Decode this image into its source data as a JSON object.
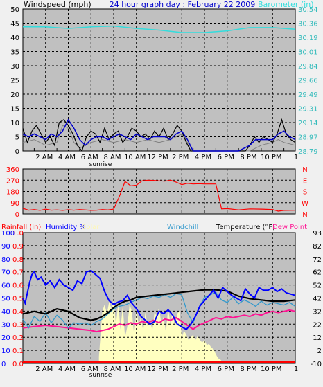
{
  "header": {
    "windspeed_label": "Windspeed (mph)",
    "title": "24 hour graph day : February 22 2009",
    "barometer_label": "Barometer (in)"
  },
  "time_axis": {
    "labels": [
      "2 AM",
      "4 AM",
      "6 AM",
      "8 AM",
      "10 AM",
      "12 PM",
      "2 PM",
      "4 PM",
      "6 PM",
      "8 PM",
      "10 PM"
    ],
    "label_hours": [
      2,
      4,
      6,
      8,
      10,
      12,
      14,
      16,
      18,
      20,
      22
    ],
    "end_label": "1",
    "sunrise_label": "sunrise",
    "sunrise_hour": 6.95
  },
  "legend": {
    "rainfall": "Rainfall (in)",
    "humidity": "Humidity %",
    "solar": "Solar",
    "windchill": "Windchill",
    "temperature": "Temperature (°F)",
    "dew_point": "Dew Point"
  },
  "colors": {
    "background": "#c0c0c0",
    "grid": "#000000",
    "wind_speed": "#000000",
    "wind_gust": "#0000cc",
    "wind_avg": "#808080",
    "barometer": "#33dddd",
    "direction": "#ff0000",
    "rainfall": "#ff0000",
    "humidity": "#0000ff",
    "solar": "#ffffc0",
    "windchill": "#3399cc",
    "temperature": "#000000",
    "dew_point": "#ff1493",
    "axis_humidity": "#0000ff",
    "axis_rain": "#ff0000",
    "axis_wind_dir": "#ff0000",
    "axis_baro": "#33bbbb"
  },
  "chart_data": [
    {
      "type": "line",
      "name": "wind-barometer",
      "x_range": [
        0,
        24
      ],
      "y_left": {
        "label": "Windspeed (mph)",
        "ticks": [
          0,
          5,
          10,
          15,
          20,
          25,
          30,
          35,
          40,
          45,
          50
        ],
        "range": [
          0,
          50
        ]
      },
      "y_right": {
        "label": "Barometer (in)",
        "ticks": [
          "28.79",
          "28.97",
          "29.14",
          "29.31",
          "29.49",
          "29.66",
          "29.84",
          "30.01",
          "30.19",
          "30.36",
          "30.54"
        ],
        "range": [
          28.79,
          30.54
        ]
      },
      "series": [
        {
          "key": "wind_speed",
          "x": [
            0,
            0.4,
            0.8,
            1.2,
            1.6,
            2.0,
            2.4,
            2.8,
            3.2,
            3.6,
            4.0,
            4.4,
            4.8,
            5.2,
            5.6,
            6.0,
            6.4,
            6.8,
            7.2,
            7.6,
            8.0,
            8.4,
            8.8,
            9.2,
            9.6,
            10.0,
            10.4,
            10.8,
            11.2,
            11.6,
            12.0,
            12.4,
            12.8,
            13.2,
            13.6,
            14.0,
            14.4,
            14.8,
            15.2,
            15.6,
            16.0,
            16.4,
            16.8,
            17.2,
            17.6,
            18.0,
            18.4,
            18.8,
            19.2,
            19.6,
            20.0,
            20.4,
            20.8,
            21.2,
            21.6,
            22.0,
            22.4,
            22.8,
            23.2,
            23.6,
            24.0
          ],
          "y": [
            8,
            3,
            7,
            9,
            6,
            3,
            5,
            2,
            10,
            11,
            9,
            6,
            2,
            0,
            5,
            7,
            6,
            3,
            8,
            4,
            6,
            7,
            3,
            5,
            8,
            7,
            5,
            6,
            4,
            7,
            5,
            8,
            4,
            6,
            9,
            7,
            3,
            0,
            0,
            0,
            0,
            0,
            0,
            0,
            0,
            0,
            0,
            0,
            0,
            0,
            2,
            5,
            3,
            5,
            4,
            3,
            6,
            11,
            6,
            4,
            3
          ]
        },
        {
          "key": "wind_gust",
          "x": [
            0,
            0.5,
            1.0,
            1.5,
            2.0,
            2.5,
            3.0,
            3.5,
            4.0,
            4.5,
            5.0,
            5.5,
            6.0,
            6.5,
            7.0,
            7.5,
            8.0,
            8.5,
            9.0,
            9.5,
            10.0,
            10.5,
            11.0,
            11.5,
            12.0,
            12.5,
            13.0,
            13.5,
            14.0,
            14.5,
            15.0,
            15.5,
            16.0,
            17.0,
            18.0,
            19.0,
            20.0,
            20.5,
            21.0,
            21.5,
            22.0,
            22.5,
            23.0,
            23.5,
            24.0
          ],
          "y": [
            6,
            5,
            6,
            5,
            4,
            6,
            5,
            7,
            11,
            8,
            4,
            2,
            4,
            5,
            5,
            4,
            5,
            6,
            5,
            4,
            6,
            5,
            4,
            5,
            5,
            5,
            4,
            6,
            7,
            4,
            0,
            0,
            0,
            0,
            0,
            0,
            2,
            4,
            4,
            4,
            4,
            6,
            7,
            5,
            4
          ]
        },
        {
          "key": "wind_avg",
          "x": [
            0,
            1,
            2,
            3,
            3.5,
            4,
            4.5,
            5,
            6,
            7,
            8,
            9,
            10,
            11,
            12,
            13,
            14,
            14.5,
            15,
            16,
            17,
            18,
            19,
            20,
            21,
            22,
            22.5,
            23,
            24
          ],
          "y": [
            3,
            4,
            2,
            3,
            9,
            8,
            3,
            1,
            3,
            4,
            3,
            4,
            3,
            4,
            3,
            4,
            6,
            3,
            0,
            0,
            0,
            0,
            0,
            0,
            2,
            3,
            4,
            3,
            2
          ]
        },
        {
          "key": "barometer",
          "x": [
            0,
            2,
            4,
            6,
            8,
            10,
            12,
            14,
            16,
            18,
            20,
            22,
            24
          ],
          "y": [
            30.32,
            30.32,
            30.3,
            30.32,
            30.33,
            30.3,
            30.28,
            30.25,
            30.25,
            30.27,
            30.31,
            30.31,
            30.29
          ]
        }
      ]
    },
    {
      "type": "line",
      "name": "wind-direction",
      "x_range": [
        0,
        24
      ],
      "y_left": {
        "ticks": [
          0,
          90,
          180,
          270,
          360
        ],
        "range": [
          0,
          360
        ]
      },
      "y_right": {
        "ticks": [
          "N",
          "E",
          "S",
          "W",
          "N"
        ]
      },
      "series": [
        {
          "key": "direction",
          "x": [
            0,
            0.5,
            1,
            1.5,
            2,
            2.5,
            3,
            3.5,
            4,
            4.5,
            5,
            5.5,
            6,
            6.5,
            7,
            7.5,
            8,
            8.5,
            9,
            9.5,
            10,
            10.5,
            11,
            11.5,
            12,
            12.5,
            13,
            13.5,
            14,
            14.5,
            15,
            15.5,
            16,
            16.5,
            17,
            17.5,
            18,
            19,
            20,
            21,
            22,
            22.5,
            23,
            24
          ],
          "y": [
            45,
            30,
            35,
            28,
            38,
            30,
            32,
            28,
            33,
            30,
            35,
            32,
            28,
            30,
            35,
            32,
            38,
            140,
            260,
            225,
            230,
            265,
            270,
            268,
            265,
            262,
            270,
            255,
            235,
            245,
            240,
            242,
            240,
            240,
            240,
            40,
            42,
            32,
            40,
            38,
            35,
            22,
            28,
            30
          ]
        }
      ]
    },
    {
      "type": "line",
      "name": "weather",
      "x_range": [
        0,
        24
      ],
      "y_humidity": {
        "ticks": [
          0,
          10,
          20,
          30,
          40,
          50,
          60,
          70,
          80,
          90,
          100
        ],
        "range": [
          0,
          100
        ]
      },
      "y_rain": {
        "ticks": [
          "0.0",
          "0.1",
          "0.2",
          "0.3",
          "0.4",
          "0.5",
          "0.6",
          "0.7",
          "0.8",
          "0.9",
          "1.0"
        ],
        "range": [
          0,
          1
        ]
      },
      "y_temp": {
        "ticks": [
          -10,
          2,
          12,
          22,
          32,
          42,
          52,
          62,
          72,
          82,
          93
        ],
        "range": [
          -10,
          93
        ]
      },
      "series": [
        {
          "key": "solar",
          "x": [
            6.7,
            7.0,
            7.2,
            7.4,
            7.6,
            7.8,
            8.0,
            8.2,
            8.4,
            8.6,
            8.8,
            9.0,
            9.2,
            9.4,
            9.6,
            9.8,
            10.0,
            10.2,
            10.4,
            10.6,
            10.8,
            11.0,
            11.2,
            11.4,
            11.6,
            11.8,
            12.0,
            12.2,
            12.4,
            12.6,
            12.8,
            13.0,
            13.2,
            13.4,
            13.6,
            13.8,
            14.0,
            14.2,
            14.4,
            14.6,
            14.8,
            15.0,
            15.2,
            15.4,
            15.6,
            15.8,
            16.0,
            16.2,
            16.4,
            16.6,
            16.8,
            17.0,
            17.2,
            17.4,
            17.6,
            17.8,
            18.0
          ],
          "y": [
            5,
            40,
            45,
            38,
            47,
            42,
            48,
            30,
            46,
            26,
            44,
            20,
            28,
            45,
            40,
            22,
            41,
            30,
            35,
            25,
            39,
            28,
            34,
            25,
            39,
            36,
            43,
            30,
            36,
            24,
            42,
            30,
            40,
            27,
            38,
            40,
            20,
            25,
            22,
            18,
            20,
            22,
            18,
            21,
            18,
            16,
            18,
            14,
            15,
            12,
            11,
            7,
            4,
            3,
            1,
            0,
            0
          ]
        },
        {
          "key": "humidity",
          "x": [
            0,
            0.2,
            0.4,
            0.6,
            0.8,
            1.0,
            1.3,
            1.6,
            2.0,
            2.4,
            2.8,
            3.2,
            3.6,
            4.0,
            4.4,
            4.8,
            5.2,
            5.6,
            6.0,
            6.4,
            6.8,
            7.2,
            7.6,
            8.0,
            8.4,
            8.8,
            9.2,
            9.6,
            10.0,
            10.4,
            10.8,
            11.2,
            11.6,
            12.0,
            12.4,
            12.8,
            13.2,
            13.6,
            14.0,
            14.4,
            14.8,
            15.2,
            15.6,
            16.0,
            16.4,
            16.8,
            17.2,
            17.6,
            18.0,
            18.4,
            18.8,
            19.2,
            19.6,
            20.0,
            20.4,
            20.8,
            21.2,
            21.6,
            22.0,
            22.4,
            22.8,
            23.2,
            23.6,
            24.0
          ],
          "y": [
            50,
            46,
            54,
            62,
            68,
            70,
            64,
            66,
            60,
            63,
            58,
            64,
            60,
            58,
            56,
            63,
            61,
            70,
            71,
            68,
            65,
            55,
            48,
            45,
            47,
            48,
            52,
            46,
            42,
            36,
            33,
            30,
            32,
            40,
            38,
            41,
            37,
            30,
            28,
            26,
            30,
            36,
            44,
            48,
            52,
            56,
            50,
            58,
            55,
            52,
            50,
            48,
            57,
            53,
            50,
            58,
            56,
            56,
            58,
            55,
            57,
            54,
            53,
            52
          ]
        },
        {
          "key": "temperature",
          "x": [
            0,
            1,
            2,
            3,
            4,
            5,
            6,
            6.5,
            7,
            7.5,
            8,
            8.5,
            9,
            9.5,
            10,
            11,
            12,
            13,
            14,
            15,
            16,
            17,
            18,
            19,
            20,
            21,
            22,
            23,
            24
          ],
          "y": [
            29,
            31,
            29,
            33,
            31,
            26,
            24,
            25,
            27,
            30,
            34,
            37,
            39,
            40,
            42,
            43,
            44,
            45,
            46,
            47,
            48,
            48,
            47,
            43,
            41,
            40,
            39,
            39,
            40
          ]
        },
        {
          "key": "windchill",
          "x": [
            0,
            0.5,
            1,
            1.5,
            2,
            2.5,
            3,
            3.5,
            4,
            4.5,
            5,
            5.5,
            6,
            6.5,
            7,
            7.5,
            8,
            8.5,
            9,
            9.5,
            10,
            10.5,
            11,
            11.5,
            12,
            12.5,
            13,
            13.5,
            14,
            14.5,
            15,
            15.5,
            16,
            16.5,
            17,
            17.5,
            18,
            18.5,
            19,
            19.5,
            20,
            20.5,
            21,
            21.5,
            22,
            22.5,
            23,
            23.5,
            24
          ],
          "y": [
            25,
            18,
            27,
            23,
            30,
            22,
            28,
            24,
            18,
            22,
            21,
            22,
            20,
            23,
            25,
            29,
            33,
            35,
            36,
            38,
            40,
            42,
            41,
            43,
            42,
            44,
            42,
            45,
            44,
            30,
            22,
            34,
            42,
            44,
            46,
            40,
            38,
            42,
            37,
            40,
            38,
            35,
            39,
            36,
            38,
            37,
            36,
            38,
            35
          ]
        },
        {
          "key": "dew_point",
          "x": [
            0,
            1,
            2,
            3,
            4,
            5,
            6,
            6.5,
            7,
            7.5,
            8,
            8.5,
            9,
            9.5,
            10,
            10.5,
            11,
            11.5,
            12,
            12.5,
            13,
            13.5,
            14,
            14.5,
            15,
            15.5,
            16,
            16.5,
            17,
            17.5,
            18,
            18.5,
            19,
            19.5,
            20,
            20.5,
            21,
            21.5,
            22,
            22.5,
            23,
            23.5,
            24
          ],
          "y": [
            18,
            19,
            20,
            19,
            18,
            17,
            16,
            15,
            16,
            17,
            19,
            21,
            20,
            22,
            21,
            23,
            22,
            24,
            22,
            25,
            24,
            26,
            23,
            20,
            17,
            20,
            22,
            24,
            26,
            25,
            27,
            26,
            27,
            28,
            27,
            29,
            28,
            30,
            31,
            30,
            31,
            32,
            31
          ]
        },
        {
          "key": "rainfall",
          "x": [
            0,
            24
          ],
          "y": [
            0,
            0
          ]
        }
      ]
    }
  ]
}
